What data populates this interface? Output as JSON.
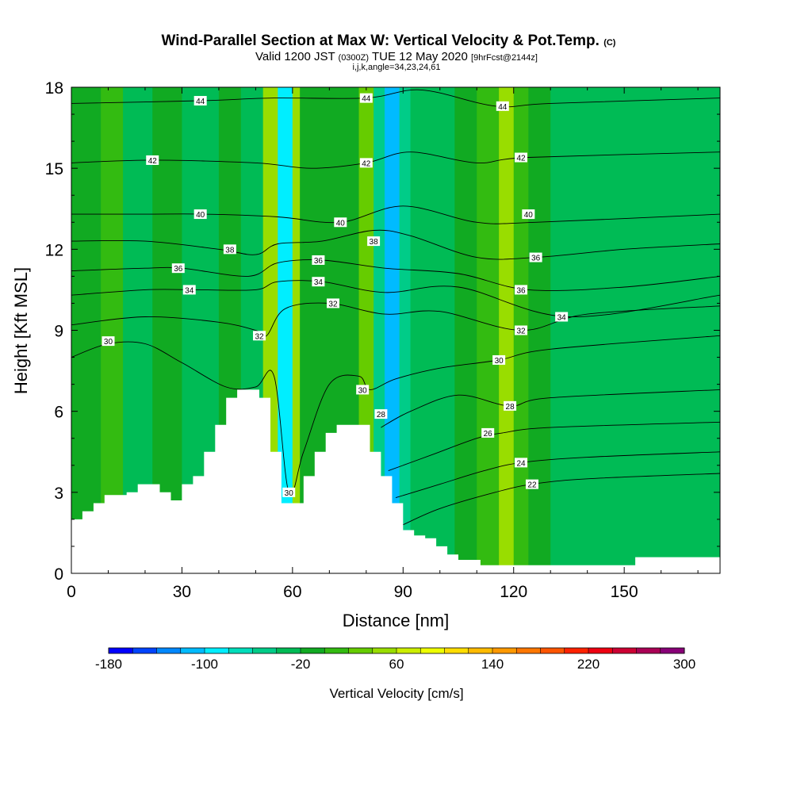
{
  "chart_data": {
    "type": "heatmap",
    "title": "Wind-Parallel Section at Max W: Vertical Velocity & Pot.Temp.",
    "title_mark": "(C)",
    "subtitle": {
      "valid": "Valid 1200 JST",
      "utc": "(0300Z)",
      "date": "TUE 12 May 2020",
      "forecast": "[9hrFcst@2144z]"
    },
    "params": "i,j,k,angle=34,23,24,61",
    "xlabel": "Distance [nm]",
    "ylabel": "Height [Kft MSL]",
    "xlim": [
      0,
      176
    ],
    "ylim": [
      0,
      18
    ],
    "xticks": [
      "0",
      "30",
      "60",
      "90",
      "120",
      "150"
    ],
    "xtick_values": [
      0,
      30,
      60,
      90,
      120,
      150
    ],
    "yticks": [
      "0",
      "3",
      "6",
      "9",
      "12",
      "15",
      "18"
    ],
    "ytick_values": [
      0,
      3,
      6,
      9,
      12,
      15,
      18
    ],
    "colorbar": {
      "label": "Vertical Velocity [cm/s]",
      "tick_labels": [
        "-180",
        "-100",
        "-20",
        "60",
        "140",
        "220",
        "300"
      ],
      "tick_values": [
        -180,
        -100,
        -20,
        60,
        140,
        220,
        300
      ],
      "min": -180,
      "max": 300,
      "step": 20,
      "colors": [
        "#0000ff",
        "#0044ff",
        "#0088ff",
        "#00bbff",
        "#00eeff",
        "#00ddbb",
        "#00cc88",
        "#00bb55",
        "#11aa22",
        "#33bb11",
        "#66cc00",
        "#99dd00",
        "#ccee00",
        "#eeff00",
        "#ffdd00",
        "#ffbb00",
        "#ff9900",
        "#ff7700",
        "#ff5500",
        "#ff2200",
        "#ee0011",
        "#cc0033",
        "#aa0055",
        "#880077"
      ]
    },
    "velocity_bands": [
      {
        "x": [
          0,
          8
        ],
        "value": -10
      },
      {
        "x": [
          8,
          14
        ],
        "value": 0
      },
      {
        "x": [
          14,
          22
        ],
        "value": -30
      },
      {
        "x": [
          22,
          30
        ],
        "value": -10
      },
      {
        "x": [
          30,
          40
        ],
        "value": -30
      },
      {
        "x": [
          40,
          46
        ],
        "value": -10
      },
      {
        "x": [
          46,
          52
        ],
        "value": -30
      },
      {
        "x": [
          52,
          56
        ],
        "value": 50
      },
      {
        "x": [
          56,
          60
        ],
        "value": -90
      },
      {
        "x": [
          60,
          62
        ],
        "value": 50
      },
      {
        "x": [
          62,
          78
        ],
        "value": -10
      },
      {
        "x": [
          78,
          82
        ],
        "value": 30
      },
      {
        "x": [
          82,
          85
        ],
        "value": -50
      },
      {
        "x": [
          85,
          89
        ],
        "value": -110
      },
      {
        "x": [
          89,
          92
        ],
        "value": -50
      },
      {
        "x": [
          92,
          104
        ],
        "value": -30
      },
      {
        "x": [
          104,
          110
        ],
        "value": -10
      },
      {
        "x": [
          110,
          116
        ],
        "value": 10
      },
      {
        "x": [
          116,
          120
        ],
        "value": 50
      },
      {
        "x": [
          120,
          124
        ],
        "value": 10
      },
      {
        "x": [
          124,
          130
        ],
        "value": -10
      },
      {
        "x": [
          130,
          176
        ],
        "value": -30
      }
    ],
    "terrain": {
      "x": [
        0,
        3,
        6,
        9,
        12,
        15,
        18,
        21,
        24,
        27,
        30,
        33,
        36,
        39,
        42,
        45,
        48,
        51,
        54,
        57,
        60,
        63,
        66,
        69,
        72,
        75,
        78,
        81,
        84,
        87,
        90,
        93,
        96,
        99,
        102,
        105,
        108,
        111,
        114,
        117,
        120,
        123,
        126,
        129,
        132,
        135,
        138,
        141,
        144,
        147,
        150,
        153,
        156,
        159,
        162,
        165,
        168,
        171,
        174,
        176
      ],
      "height": [
        2.0,
        2.3,
        2.6,
        2.9,
        2.9,
        3.0,
        3.3,
        3.3,
        3.0,
        2.7,
        3.3,
        3.6,
        4.5,
        5.5,
        6.5,
        6.8,
        6.8,
        6.5,
        4.5,
        2.6,
        2.6,
        3.6,
        4.5,
        5.2,
        5.5,
        5.5,
        5.5,
        4.5,
        3.6,
        2.6,
        1.6,
        1.4,
        1.3,
        1.0,
        0.7,
        0.5,
        0.5,
        0.3,
        0.3,
        0.3,
        0.3,
        0.3,
        0.3,
        0.3,
        0.3,
        0.3,
        0.3,
        0.3,
        0.3,
        0.3,
        0.3,
        0.6,
        0.6,
        0.6,
        0.6,
        0.6,
        0.6,
        0.6,
        0.6,
        0.6
      ]
    },
    "isentropes": [
      {
        "value": 22,
        "points": [
          [
            90,
            1.8
          ],
          [
            100,
            2.4
          ],
          [
            115,
            3.0
          ],
          [
            125,
            3.3
          ],
          [
            140,
            3.5
          ],
          [
            176,
            3.7
          ]
        ]
      },
      {
        "value": 24,
        "points": [
          [
            88,
            2.8
          ],
          [
            100,
            3.3
          ],
          [
            112,
            3.8
          ],
          [
            122,
            4.1
          ],
          [
            140,
            4.3
          ],
          [
            176,
            4.5
          ]
        ]
      },
      {
        "value": 26,
        "points": [
          [
            86,
            3.8
          ],
          [
            98,
            4.4
          ],
          [
            110,
            5.0
          ],
          [
            117,
            5.2
          ],
          [
            130,
            5.4
          ],
          [
            176,
            5.6
          ]
        ]
      },
      {
        "value": 28,
        "points": [
          [
            84,
            5.4
          ],
          [
            92,
            6.0
          ],
          [
            105,
            6.6
          ],
          [
            119,
            6.2
          ],
          [
            130,
            6.5
          ],
          [
            176,
            6.8
          ]
        ]
      },
      {
        "value": 30,
        "points": [
          [
            0,
            8.0
          ],
          [
            10,
            8.5
          ],
          [
            20,
            8.5
          ],
          [
            30,
            7.8
          ],
          [
            42,
            6.9
          ],
          [
            50,
            6.9
          ],
          [
            55,
            7.3
          ],
          [
            59,
            3.0
          ],
          [
            63,
            4.5
          ],
          [
            70,
            7.0
          ],
          [
            78,
            7.3
          ],
          [
            81,
            6.8
          ],
          [
            88,
            7.2
          ],
          [
            100,
            7.6
          ],
          [
            116,
            7.9
          ],
          [
            130,
            8.3
          ],
          [
            176,
            8.8
          ]
        ]
      },
      {
        "value": 32,
        "points": [
          [
            0,
            9.2
          ],
          [
            20,
            9.5
          ],
          [
            40,
            9.3
          ],
          [
            50,
            9.0
          ],
          [
            53,
            8.8
          ],
          [
            58,
            9.8
          ],
          [
            70,
            10.0
          ],
          [
            85,
            9.6
          ],
          [
            100,
            9.7
          ],
          [
            122,
            9.0
          ],
          [
            140,
            9.6
          ],
          [
            176,
            9.9
          ]
        ]
      },
      {
        "value": 34,
        "points": [
          [
            0,
            10.3
          ],
          [
            20,
            10.5
          ],
          [
            34,
            10.5
          ],
          [
            50,
            10.5
          ],
          [
            56,
            10.8
          ],
          [
            68,
            10.8
          ],
          [
            85,
            10.4
          ],
          [
            105,
            10.6
          ],
          [
            135,
            9.5
          ],
          [
            176,
            10.3
          ]
        ]
      },
      {
        "value": 36,
        "points": [
          [
            0,
            11.2
          ],
          [
            20,
            11.3
          ],
          [
            30,
            11.3
          ],
          [
            48,
            11.0
          ],
          [
            56,
            11.5
          ],
          [
            68,
            11.6
          ],
          [
            85,
            11.3
          ],
          [
            105,
            11.1
          ],
          [
            124,
            10.5
          ],
          [
            150,
            10.6
          ],
          [
            176,
            11.0
          ]
        ]
      },
      {
        "value": 38,
        "points": [
          [
            0,
            12.3
          ],
          [
            20,
            12.3
          ],
          [
            40,
            12.0
          ],
          [
            50,
            11.8
          ],
          [
            56,
            12.2
          ],
          [
            68,
            12.3
          ],
          [
            82,
            12.7
          ],
          [
            92,
            12.5
          ],
          [
            110,
            11.7
          ],
          [
            126,
            11.7
          ],
          [
            150,
            12.0
          ],
          [
            176,
            12.2
          ]
        ]
      },
      {
        "value": 40,
        "points": [
          [
            0,
            13.3
          ],
          [
            20,
            13.3
          ],
          [
            36,
            13.3
          ],
          [
            56,
            13.2
          ],
          [
            73,
            13.0
          ],
          [
            90,
            13.6
          ],
          [
            110,
            13.0
          ],
          [
            126,
            13.0
          ],
          [
            176,
            13.3
          ]
        ]
      },
      {
        "value": 42,
        "points": [
          [
            0,
            15.2
          ],
          [
            22,
            15.3
          ],
          [
            50,
            15.2
          ],
          [
            65,
            15.0
          ],
          [
            80,
            15.2
          ],
          [
            92,
            15.6
          ],
          [
            110,
            15.2
          ],
          [
            124,
            15.4
          ],
          [
            176,
            15.6
          ]
        ]
      },
      {
        "value": 44,
        "points": [
          [
            0,
            17.4
          ],
          [
            35,
            17.5
          ],
          [
            55,
            17.6
          ],
          [
            80,
            17.6
          ],
          [
            95,
            17.9
          ],
          [
            115,
            17.3
          ],
          [
            130,
            17.4
          ],
          [
            176,
            17.6
          ]
        ]
      }
    ],
    "contour_labels": [
      {
        "text": "44",
        "x": 35,
        "y": 17.5
      },
      {
        "text": "44",
        "x": 80,
        "y": 17.6
      },
      {
        "text": "44",
        "x": 117,
        "y": 17.3
      },
      {
        "text": "42",
        "x": 22,
        "y": 15.3
      },
      {
        "text": "42",
        "x": 80,
        "y": 15.2
      },
      {
        "text": "42",
        "x": 122,
        "y": 15.4
      },
      {
        "text": "40",
        "x": 35,
        "y": 13.3
      },
      {
        "text": "40",
        "x": 73,
        "y": 13.0
      },
      {
        "text": "40",
        "x": 124,
        "y": 13.3
      },
      {
        "text": "38",
        "x": 43,
        "y": 12.0
      },
      {
        "text": "38",
        "x": 82,
        "y": 12.3
      },
      {
        "text": "36",
        "x": 29,
        "y": 11.3
      },
      {
        "text": "36",
        "x": 67,
        "y": 11.6
      },
      {
        "text": "36",
        "x": 126,
        "y": 11.7
      },
      {
        "text": "34",
        "x": 32,
        "y": 10.5
      },
      {
        "text": "34",
        "x": 67,
        "y": 10.8
      },
      {
        "text": "36",
        "x": 122,
        "y": 10.5
      },
      {
        "text": "32",
        "x": 71,
        "y": 10.0
      },
      {
        "text": "34",
        "x": 133,
        "y": 9.5
      },
      {
        "text": "32",
        "x": 51,
        "y": 8.8
      },
      {
        "text": "32",
        "x": 122,
        "y": 9.0
      },
      {
        "text": "30",
        "x": 10,
        "y": 8.6
      },
      {
        "text": "30",
        "x": 116,
        "y": 7.9
      },
      {
        "text": "30",
        "x": 79,
        "y": 6.8
      },
      {
        "text": "28",
        "x": 84,
        "y": 5.9
      },
      {
        "text": "28",
        "x": 119,
        "y": 6.2
      },
      {
        "text": "26",
        "x": 113,
        "y": 5.2
      },
      {
        "text": "24",
        "x": 122,
        "y": 4.1
      },
      {
        "text": "22",
        "x": 125,
        "y": 3.3
      },
      {
        "text": "30",
        "x": 59,
        "y": 3.0
      }
    ]
  }
}
